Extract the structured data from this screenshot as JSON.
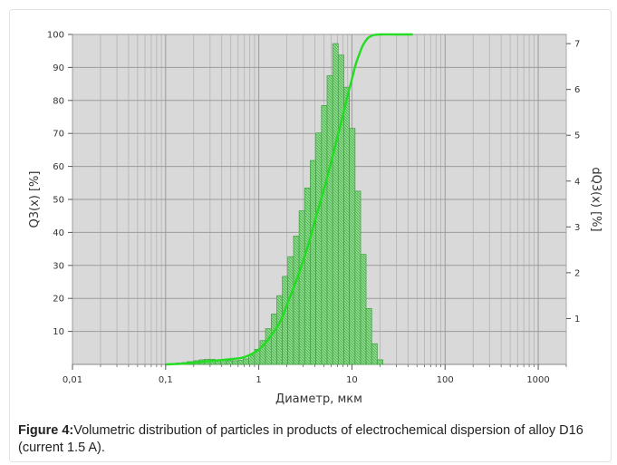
{
  "chart_data": {
    "type": "bar",
    "xlabel": "Диаметр, мкм",
    "ylabel_left": "Q3(x) [%]",
    "ylabel_right": "dQ3(x) [%]",
    "x_scale": "log",
    "xlim": [
      0.01,
      2000
    ],
    "ylim_left": [
      0,
      100
    ],
    "ylim_right": [
      0,
      7.2
    ],
    "x_ticks": [
      {
        "value": 0.01,
        "label": "0,01"
      },
      {
        "value": 0.1,
        "label": "0,1"
      },
      {
        "value": 1,
        "label": "1"
      },
      {
        "value": 10,
        "label": "10"
      },
      {
        "value": 100,
        "label": "100"
      },
      {
        "value": 1000,
        "label": "1000"
      }
    ],
    "y_left_ticks": [
      10,
      20,
      30,
      40,
      50,
      60,
      70,
      80,
      90,
      100
    ],
    "y_right_ticks": [
      1,
      2,
      3,
      4,
      5,
      6,
      7
    ],
    "grid": true,
    "colors": {
      "background": "#d9d9d9",
      "bars": "#7cd67c",
      "bar_edge": "#3d9e3d",
      "curve": "#22dd22",
      "grid": "#9b9b9b"
    },
    "histogram_dQ3": [
      {
        "x": [
          0.1,
          0.115
        ],
        "value": 0.01
      },
      {
        "x": [
          0.115,
          0.13
        ],
        "value": 0.02
      },
      {
        "x": [
          0.13,
          0.15
        ],
        "value": 0.03
      },
      {
        "x": [
          0.15,
          0.17
        ],
        "value": 0.04
      },
      {
        "x": [
          0.17,
          0.2
        ],
        "value": 0.06
      },
      {
        "x": [
          0.2,
          0.23
        ],
        "value": 0.08
      },
      {
        "x": [
          0.23,
          0.26
        ],
        "value": 0.1
      },
      {
        "x": [
          0.26,
          0.3
        ],
        "value": 0.11
      },
      {
        "x": [
          0.3,
          0.34
        ],
        "value": 0.11
      },
      {
        "x": [
          0.34,
          0.39
        ],
        "value": 0.1
      },
      {
        "x": [
          0.39,
          0.45
        ],
        "value": 0.09
      },
      {
        "x": [
          0.45,
          0.52
        ],
        "value": 0.08
      },
      {
        "x": [
          0.52,
          0.6
        ],
        "value": 0.08
      },
      {
        "x": [
          0.6,
          0.68
        ],
        "value": 0.09
      },
      {
        "x": [
          0.68,
          0.78
        ],
        "value": 0.12
      },
      {
        "x": [
          0.78,
          0.9
        ],
        "value": 0.2
      },
      {
        "x": [
          0.9,
          1.03
        ],
        "value": 0.33
      },
      {
        "x": [
          1.03,
          1.18
        ],
        "value": 0.52
      },
      {
        "x": [
          1.18,
          1.36
        ],
        "value": 0.78
      },
      {
        "x": [
          1.36,
          1.56
        ],
        "value": 1.1
      },
      {
        "x": [
          1.56,
          1.79
        ],
        "value": 1.5
      },
      {
        "x": [
          1.79,
          2.05
        ],
        "value": 1.92
      },
      {
        "x": [
          2.05,
          2.36
        ],
        "value": 2.35
      },
      {
        "x": [
          2.36,
          2.71
        ],
        "value": 2.8
      },
      {
        "x": [
          2.71,
          3.11
        ],
        "value": 3.35
      },
      {
        "x": [
          3.11,
          3.57
        ],
        "value": 3.85
      },
      {
        "x": [
          3.57,
          4.1
        ],
        "value": 4.45
      },
      {
        "x": [
          4.1,
          4.71
        ],
        "value": 5.05
      },
      {
        "x": [
          4.71,
          5.41
        ],
        "value": 5.65
      },
      {
        "x": [
          5.41,
          6.21
        ],
        "value": 6.3
      },
      {
        "x": [
          6.21,
          7.13
        ],
        "value": 7.0
      },
      {
        "x": [
          7.13,
          8.19
        ],
        "value": 6.75
      },
      {
        "x": [
          8.19,
          9.4
        ],
        "value": 6.05
      },
      {
        "x": [
          9.4,
          10.8
        ],
        "value": 5.15
      },
      {
        "x": [
          10.8,
          12.4
        ],
        "value": 3.78
      },
      {
        "x": [
          12.4,
          14.2
        ],
        "value": 2.4
      },
      {
        "x": [
          14.2,
          16.3
        ],
        "value": 1.22
      },
      {
        "x": [
          16.3,
          18.7
        ],
        "value": 0.45
      },
      {
        "x": [
          18.7,
          21.5
        ],
        "value": 0.1
      }
    ],
    "cumulative_Q3": {
      "x": [
        0.1,
        0.15,
        0.2,
        0.3,
        0.5,
        0.7,
        1.0,
        1.3,
        1.7,
        2.0,
        2.5,
        3.0,
        3.5,
        4.0,
        5.0,
        6.0,
        7.0,
        8.0,
        9.0,
        10.0,
        11.0,
        12.0,
        13.0,
        14.0,
        15.0,
        17.0,
        20.0,
        30.0,
        45.0
      ],
      "y": [
        0.0,
        0.2,
        0.5,
        1.0,
        1.6,
        2.2,
        4.5,
        8.0,
        13.0,
        18.0,
        25.0,
        31.5,
        37.5,
        43.5,
        53.0,
        61.5,
        69.0,
        75.5,
        81.5,
        86.5,
        91.0,
        94.0,
        96.5,
        98.0,
        99.0,
        99.8,
        100.0,
        100.0,
        100.0
      ]
    }
  },
  "caption": {
    "label": "Figure 4:",
    "text": "Volumetric distribution of particles in products of electrochemical dispersion of alloy D16 (current 1.5 A)."
  }
}
